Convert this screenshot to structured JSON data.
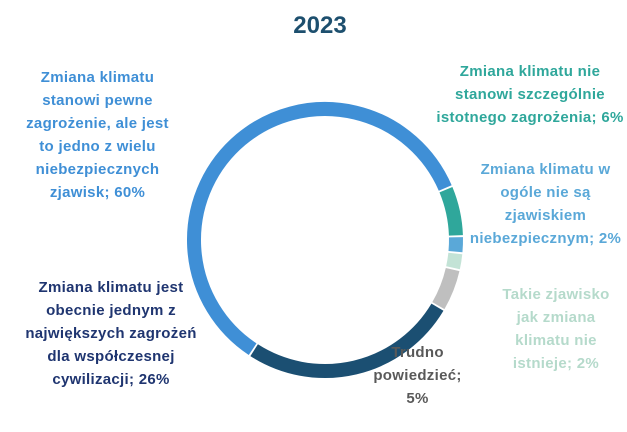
{
  "chart_data": {
    "type": "donut",
    "title": "2023",
    "values": [
      6,
      2,
      2,
      5,
      26,
      60
    ],
    "value_labels": [
      "Zmiana klimatu nie stanowi szczególnie istotnego zagrożenia; 6%",
      "Zmiana klimatu w ogóle nie są zjawiskiem niebezpiecznym; 2%",
      "Takie zjawisko jak zmiana klimatu nie istnieje; 2%",
      "Trudno powiedzieć; 5%",
      "Zmiana klimatu jest obecnie jednym z największych zagrożeń dla współczesnej cywilizacji; 26%",
      "Zmiana klimatu stanowi pewne zagrożenie, ale jest to jedno z wielu niebezpiecznych zjawisk; 60%"
    ],
    "colors": [
      "#2fa79b",
      "#5aa8d8",
      "#c3e3d6",
      "#bfbfbf",
      "#1b4f72",
      "#3f8fd6"
    ],
    "label_colors": [
      "#2fa79b",
      "#5aa8d8",
      "#b5dacb",
      "#595959",
      "#1f3570",
      "#3f8fd6"
    ]
  }
}
